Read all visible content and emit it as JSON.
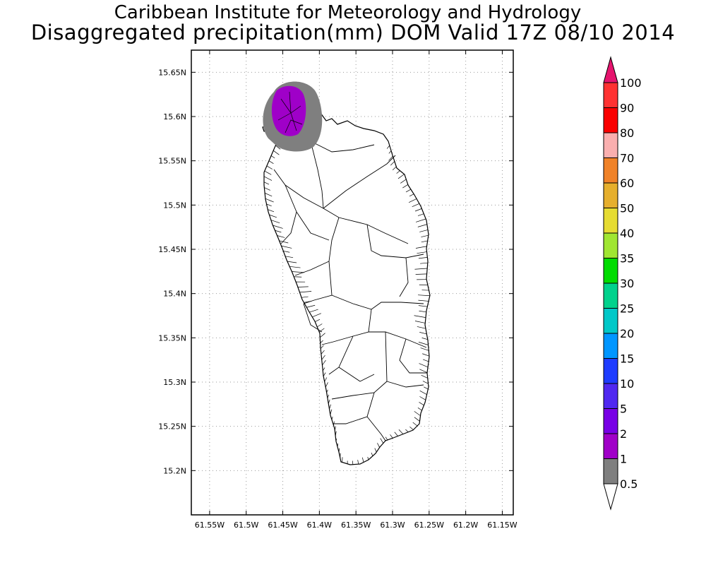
{
  "title": {
    "line1": "Caribbean Institute for Meteorology and Hydrology",
    "line2": "Disaggregated precipitation(mm) DOM Valid 17Z 08/10 2014"
  },
  "map": {
    "lon_range": [
      -61.575,
      -61.135
    ],
    "lat_range": [
      15.15,
      15.675
    ],
    "lon_ticks": [
      "61.55W",
      "61.5W",
      "61.45W",
      "61.4W",
      "61.35W",
      "61.3W",
      "61.25W",
      "61.2W",
      "61.15W"
    ],
    "lat_ticks": [
      "15.2N",
      "15.25N",
      "15.3N",
      "15.35N",
      "15.4N",
      "15.45N",
      "15.5N",
      "15.55N",
      "15.6N",
      "15.65N"
    ],
    "grid": true,
    "region": "Dominica",
    "precip_area": {
      "center_lon": -61.45,
      "center_lat": 15.605,
      "shade_0_5_to_1": "#7f7f7f",
      "shade_1_to_2": "#9f00c8"
    }
  },
  "colorbar": {
    "levels": [
      "0.5",
      "1",
      "2",
      "5",
      "10",
      "15",
      "20",
      "25",
      "30",
      "35",
      "40",
      "50",
      "60",
      "70",
      "80",
      "90",
      "100"
    ],
    "colors": [
      "#7f7f7f",
      "#a000c8",
      "#7800e6",
      "#5028f0",
      "#1e3cff",
      "#0096ff",
      "#00c8c8",
      "#00d28c",
      "#00dc00",
      "#a0e632",
      "#e6dc32",
      "#e6af2d",
      "#f08228",
      "#faafaf",
      "#fa0000",
      "#ff3232"
    ],
    "top_arrow_color": "#e6146e",
    "bottom_arrow_color": "#ffffff"
  }
}
